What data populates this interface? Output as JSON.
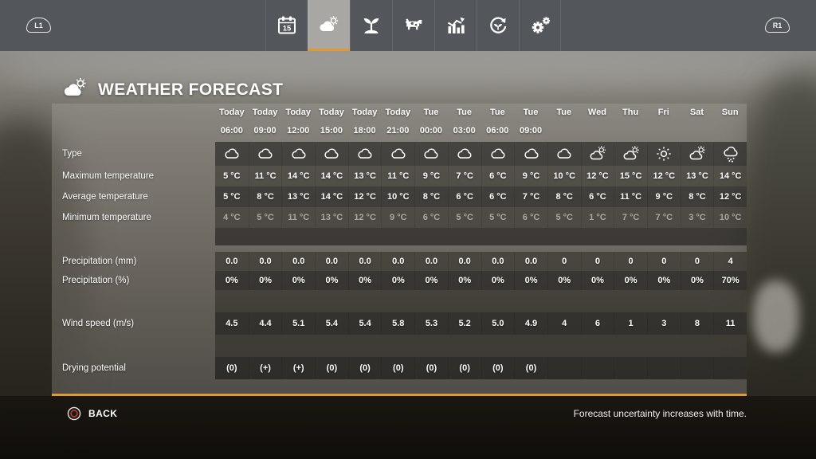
{
  "nav": {
    "left_shoulder": "L1",
    "right_shoulder": "R1",
    "tabs": [
      {
        "icon": "calendar",
        "day": "15",
        "active": false
      },
      {
        "icon": "weather",
        "active": true
      },
      {
        "icon": "crops",
        "active": false
      },
      {
        "icon": "animals",
        "active": false
      },
      {
        "icon": "finances",
        "active": false
      },
      {
        "icon": "rotation",
        "active": false
      },
      {
        "icon": "settings",
        "active": false
      }
    ]
  },
  "header": {
    "title": "WEATHER FORECAST",
    "icon": "weather"
  },
  "table": {
    "columns": [
      {
        "day": "Today",
        "time": "06:00"
      },
      {
        "day": "Today",
        "time": "09:00"
      },
      {
        "day": "Today",
        "time": "12:00"
      },
      {
        "day": "Today",
        "time": "15:00"
      },
      {
        "day": "Today",
        "time": "18:00"
      },
      {
        "day": "Today",
        "time": "21:00"
      },
      {
        "day": "Tue",
        "time": "00:00"
      },
      {
        "day": "Tue",
        "time": "03:00"
      },
      {
        "day": "Tue",
        "time": "06:00"
      },
      {
        "day": "Tue",
        "time": "09:00"
      },
      {
        "day": "Tue",
        "time": ""
      },
      {
        "day": "Wed",
        "time": ""
      },
      {
        "day": "Thu",
        "time": ""
      },
      {
        "day": "Fri",
        "time": ""
      },
      {
        "day": "Sat",
        "time": ""
      },
      {
        "day": "Sun",
        "time": ""
      }
    ],
    "rows": {
      "type": {
        "label": "Type",
        "icons": [
          "cloudy",
          "cloudy",
          "cloudy",
          "cloudy",
          "cloudy",
          "cloudy",
          "cloudy",
          "cloudy",
          "cloudy",
          "cloudy",
          "cloudy",
          "partly-cloudy",
          "partly-cloudy",
          "sunny",
          "partly-cloudy",
          "rainy"
        ]
      },
      "max": {
        "label": "Maximum temperature",
        "values": [
          "5 °C",
          "11 °C",
          "14 °C",
          "14 °C",
          "13 °C",
          "11 °C",
          "9 °C",
          "7 °C",
          "6 °C",
          "9 °C",
          "10 °C",
          "12 °C",
          "15 °C",
          "12 °C",
          "13 °C",
          "14 °C"
        ]
      },
      "avg": {
        "label": "Average temperature",
        "values": [
          "5 °C",
          "8 °C",
          "13 °C",
          "14 °C",
          "12 °C",
          "10 °C",
          "8 °C",
          "6 °C",
          "6 °C",
          "7 °C",
          "8 °C",
          "6 °C",
          "11 °C",
          "9 °C",
          "8 °C",
          "12 °C"
        ]
      },
      "min": {
        "label": "Minimum temperature",
        "values": [
          "4 °C",
          "5 °C",
          "11 °C",
          "13 °C",
          "12 °C",
          "9 °C",
          "6 °C",
          "5 °C",
          "5 °C",
          "6 °C",
          "5 °C",
          "1 °C",
          "7 °C",
          "7 °C",
          "3 °C",
          "10 °C"
        ]
      },
      "precip_mm": {
        "label": "Precipitation (mm)",
        "values": [
          "0.0",
          "0.0",
          "0.0",
          "0.0",
          "0.0",
          "0.0",
          "0.0",
          "0.0",
          "0.0",
          "0.0",
          "0",
          "0",
          "0",
          "0",
          "0",
          "4"
        ]
      },
      "precip_pct": {
        "label": "Precipitation (%)",
        "values": [
          "0%",
          "0%",
          "0%",
          "0%",
          "0%",
          "0%",
          "0%",
          "0%",
          "0%",
          "0%",
          "0%",
          "0%",
          "0%",
          "0%",
          "0%",
          "70%"
        ]
      },
      "wind": {
        "label": "Wind speed (m/s)",
        "values": [
          "4.5",
          "4.4",
          "5.1",
          "5.4",
          "5.4",
          "5.8",
          "5.3",
          "5.2",
          "5.0",
          "4.9",
          "4",
          "6",
          "1",
          "3",
          "8",
          "11"
        ]
      },
      "drying": {
        "label": "Drying potential",
        "values": [
          "(0)",
          "(+)",
          "(+)",
          "(0)",
          "(0)",
          "(0)",
          "(0)",
          "(0)",
          "(0)",
          "(0)",
          "",
          "",
          "",
          "",
          "",
          ""
        ]
      }
    }
  },
  "footer": {
    "back_label": "BACK",
    "note": "Forecast uncertainty increases with time."
  },
  "colors": {
    "accent": "#e09a33",
    "nav_bg": "#53575b",
    "active_tab_bg": "#a8a7a3"
  }
}
